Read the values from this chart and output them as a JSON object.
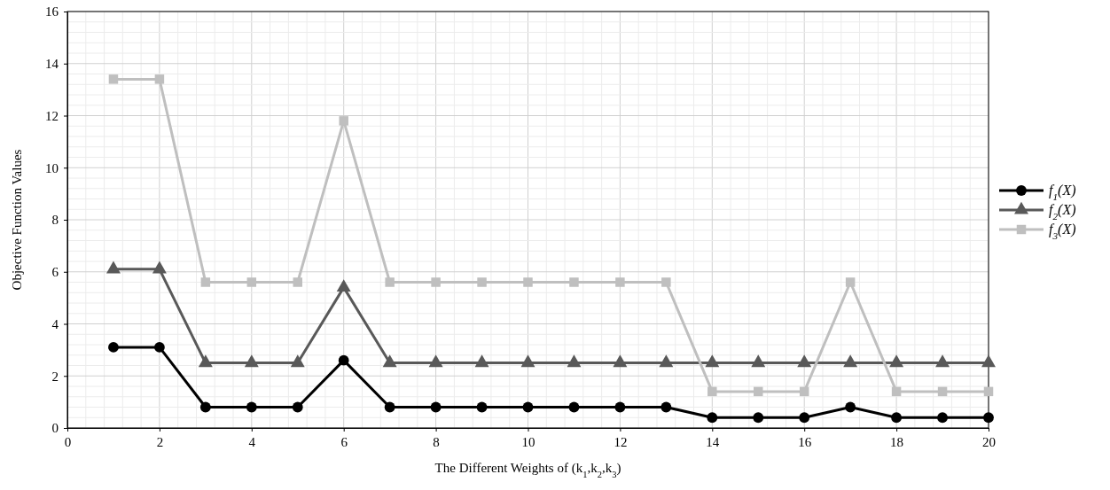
{
  "chart_data": {
    "type": "line",
    "xlabel": "The Different Weights of (k$_{1}$,k$_{2}$,k$_{3}$)",
    "ylabel": "Objective Function Values",
    "x": [
      1,
      2,
      3,
      4,
      5,
      6,
      7,
      8,
      9,
      10,
      11,
      12,
      13,
      14,
      15,
      16,
      17,
      18,
      19,
      20
    ],
    "xlim": [
      0,
      20
    ],
    "xticks": [
      0,
      2,
      4,
      6,
      8,
      10,
      12,
      14,
      16,
      18,
      20
    ],
    "ylim": [
      0,
      16
    ],
    "yticks": [
      0,
      2,
      4,
      6,
      8,
      10,
      12,
      14,
      16
    ],
    "grid": true,
    "legend": "right",
    "line_style": "solid",
    "series": [
      {
        "name": "f$_{1}$(X)",
        "color": "#000000",
        "marker": "circle",
        "values": [
          3.1,
          3.1,
          0.8,
          0.8,
          0.8,
          2.6,
          0.8,
          0.8,
          0.8,
          0.8,
          0.8,
          0.8,
          0.8,
          0.4,
          0.4,
          0.4,
          0.8,
          0.4,
          0.4,
          0.4
        ]
      },
      {
        "name": "f$_{2}$(X)",
        "color": "#595959",
        "marker": "triangle",
        "values": [
          6.1,
          6.1,
          2.5,
          2.5,
          2.5,
          5.4,
          2.5,
          2.5,
          2.5,
          2.5,
          2.5,
          2.5,
          2.5,
          2.5,
          2.5,
          2.5,
          2.5,
          2.5,
          2.5,
          2.5
        ]
      },
      {
        "name": "f$_{3}$(X)",
        "color": "#bfbfbf",
        "marker": "square",
        "values": [
          13.4,
          13.4,
          5.6,
          5.6,
          5.6,
          11.8,
          5.6,
          5.6,
          5.6,
          5.6,
          5.6,
          5.6,
          5.6,
          1.4,
          1.4,
          1.4,
          5.6,
          1.4,
          1.4,
          1.4
        ]
      }
    ]
  }
}
